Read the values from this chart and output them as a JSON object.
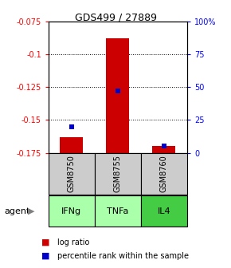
{
  "title": "GDS499 / 27889",
  "samples": [
    "GSM8750",
    "GSM8755",
    "GSM8760"
  ],
  "agents": [
    "IFNg",
    "TNFa",
    "IL4"
  ],
  "log_ratios": [
    -0.163,
    -0.088,
    -0.17
  ],
  "log_ratio_base": -0.175,
  "percentile_ranks": [
    0.2,
    0.47,
    0.05
  ],
  "ylim_left": [
    -0.175,
    -0.075
  ],
  "ylim_right": [
    0,
    100
  ],
  "yticks_left": [
    -0.175,
    -0.15,
    -0.125,
    -0.1,
    -0.075
  ],
  "yticks_right": [
    0,
    25,
    50,
    75,
    100
  ],
  "bar_color": "#cc0000",
  "percentile_color": "#0000cc",
  "sample_bg": "#cccccc",
  "agent_bg_light": "#aaffaa",
  "agent_bg_dark": "#44cc44",
  "bar_width": 0.5,
  "legend_items": [
    "log ratio",
    "percentile rank within the sample"
  ]
}
